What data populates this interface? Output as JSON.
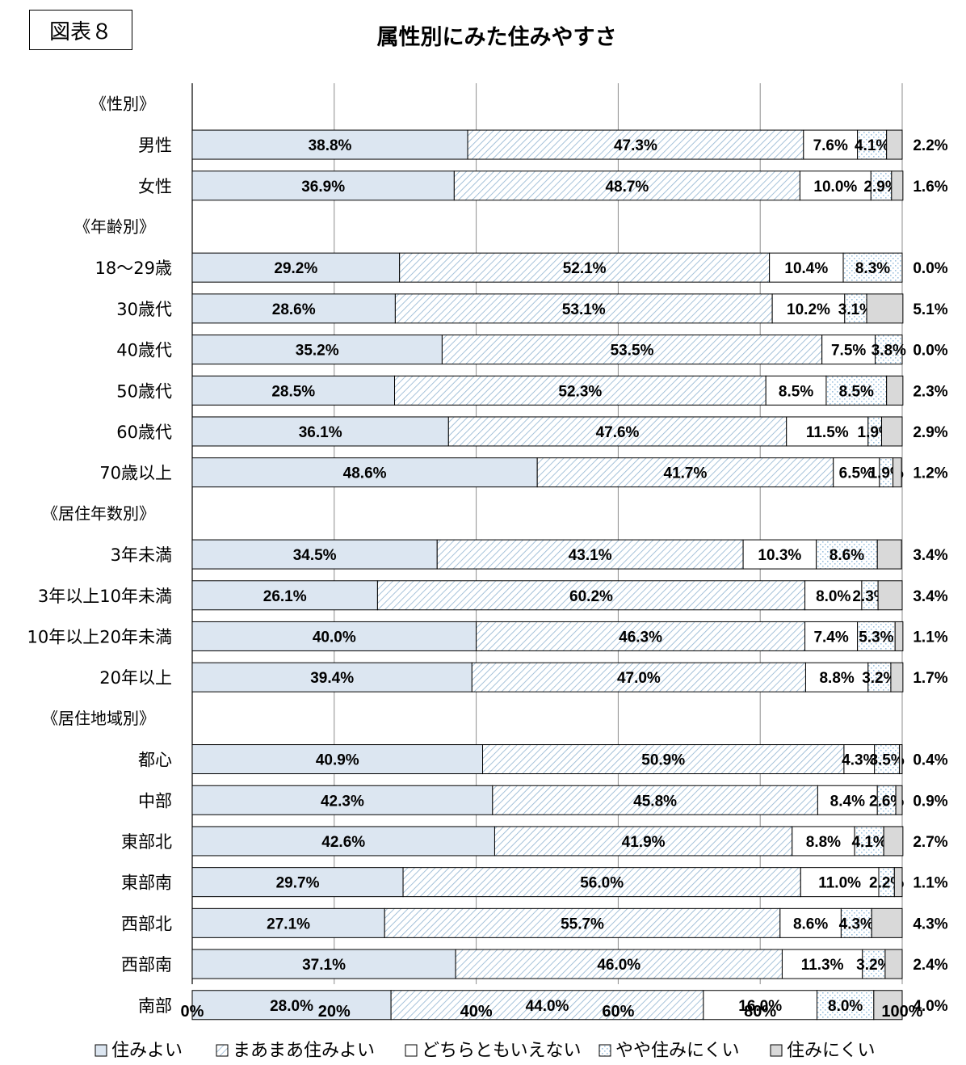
{
  "figure_label": "図表８",
  "colors": {
    "series1": "#dce6f1",
    "series2_hatch": "#8fb3d0",
    "series4_dots": "#9fc3e0",
    "series5": "#d9d9d9",
    "border": "#000000",
    "grid": "#8c8c8c"
  },
  "chart_data": {
    "type": "bar",
    "orientation": "horizontal",
    "stacked": true,
    "title": "属性別にみた住みやすさ",
    "xlim": [
      0,
      100
    ],
    "x_ticks": [
      "0%",
      "20%",
      "40%",
      "60%",
      "80%",
      "100%"
    ],
    "grid": true,
    "legend_position": "bottom",
    "series": [
      {
        "name": "住みよい",
        "pattern": "solid-lightblue"
      },
      {
        "name": "まあまあ住みよい",
        "pattern": "diagonal-hatch"
      },
      {
        "name": "どちらともいえない",
        "pattern": "white"
      },
      {
        "name": "やや住みにくい",
        "pattern": "dotted"
      },
      {
        "name": "住みにくい",
        "pattern": "solid-gray"
      }
    ],
    "groups": [
      {
        "label": "《性別》",
        "rows": [
          {
            "category": "男性",
            "values": [
              38.8,
              47.3,
              7.6,
              4.1,
              2.2
            ],
            "labels": [
              "38.8%",
              "47.3%",
              "7.6%",
              "4.1%",
              "2.2%"
            ]
          },
          {
            "category": "女性",
            "values": [
              36.9,
              48.7,
              10.0,
              2.9,
              1.6
            ],
            "labels": [
              "36.9%",
              "48.7%",
              "10.0%",
              "2.9%",
              "1.6%"
            ]
          }
        ]
      },
      {
        "label": "《年齢別》",
        "rows": [
          {
            "category": "18～29歳",
            "values": [
              29.2,
              52.1,
              10.4,
              8.3,
              0.0
            ],
            "labels": [
              "29.2%",
              "52.1%",
              "10.4%",
              "8.3%",
              "0.0%"
            ]
          },
          {
            "category": "30歳代",
            "values": [
              28.6,
              53.1,
              10.2,
              3.1,
              5.1
            ],
            "labels": [
              "28.6%",
              "53.1%",
              "10.2%",
              "3.1%",
              "5.1%"
            ]
          },
          {
            "category": "40歳代",
            "values": [
              35.2,
              53.5,
              7.5,
              3.8,
              0.0
            ],
            "labels": [
              "35.2%",
              "53.5%",
              "7.5%",
              "3.8%",
              "0.0%"
            ]
          },
          {
            "category": "50歳代",
            "values": [
              28.5,
              52.3,
              8.5,
              8.5,
              2.3
            ],
            "labels": [
              "28.5%",
              "52.3%",
              "8.5%",
              "8.5%",
              "2.3%"
            ]
          },
          {
            "category": "60歳代",
            "values": [
              36.1,
              47.6,
              11.5,
              1.9,
              2.9
            ],
            "labels": [
              "36.1%",
              "47.6%",
              "11.5%",
              "1.9%",
              "2.9%"
            ]
          },
          {
            "category": "70歳以上",
            "values": [
              48.6,
              41.7,
              6.5,
              1.9,
              1.2
            ],
            "labels": [
              "48.6%",
              "41.7%",
              "6.5%",
              "1.9%",
              "1.2%"
            ]
          }
        ]
      },
      {
        "label": "《居住年数別》",
        "rows": [
          {
            "category": "3年未満",
            "values": [
              34.5,
              43.1,
              10.3,
              8.6,
              3.4
            ],
            "labels": [
              "34.5%",
              "43.1%",
              "10.3%",
              "8.6%",
              "3.4%"
            ]
          },
          {
            "category": "3年以上10年未満",
            "values": [
              26.1,
              60.2,
              8.0,
              2.3,
              3.4
            ],
            "labels": [
              "26.1%",
              "60.2%",
              "8.0%",
              "2.3%",
              "3.4%"
            ]
          },
          {
            "category": "10年以上20年未満",
            "values": [
              40.0,
              46.3,
              7.4,
              5.3,
              1.1
            ],
            "labels": [
              "40.0%",
              "46.3%",
              "7.4%",
              "5.3%",
              "1.1%"
            ]
          },
          {
            "category": "20年以上",
            "values": [
              39.4,
              47.0,
              8.8,
              3.2,
              1.7
            ],
            "labels": [
              "39.4%",
              "47.0%",
              "8.8%",
              "3.2%",
              "1.7%"
            ]
          }
        ]
      },
      {
        "label": "《居住地域別》",
        "rows": [
          {
            "category": "都心",
            "values": [
              40.9,
              50.9,
              4.3,
              3.5,
              0.4
            ],
            "labels": [
              "40.9%",
              "50.9%",
              "4.3%",
              "3.5%",
              "0.4%"
            ]
          },
          {
            "category": "中部",
            "values": [
              42.3,
              45.8,
              8.4,
              2.6,
              0.9
            ],
            "labels": [
              "42.3%",
              "45.8%",
              "8.4%",
              "2.6%",
              "0.9%"
            ]
          },
          {
            "category": "東部北",
            "values": [
              42.6,
              41.9,
              8.8,
              4.1,
              2.7
            ],
            "labels": [
              "42.6%",
              "41.9%",
              "8.8%",
              "4.1%",
              "2.7%"
            ]
          },
          {
            "category": "東部南",
            "values": [
              29.7,
              56.0,
              11.0,
              2.2,
              1.1
            ],
            "labels": [
              "29.7%",
              "56.0%",
              "11.0%",
              "2.2%",
              "1.1%"
            ]
          },
          {
            "category": "西部北",
            "values": [
              27.1,
              55.7,
              8.6,
              4.3,
              4.3
            ],
            "labels": [
              "27.1%",
              "55.7%",
              "8.6%",
              "4.3%",
              "4.3%"
            ]
          },
          {
            "category": "西部南",
            "values": [
              37.1,
              46.0,
              11.3,
              3.2,
              2.4
            ],
            "labels": [
              "37.1%",
              "46.0%",
              "11.3%",
              "3.2%",
              "2.4%"
            ]
          },
          {
            "category": "南部",
            "values": [
              28.0,
              44.0,
              16.0,
              8.0,
              4.0
            ],
            "labels": [
              "28.0%",
              "44.0%",
              "16.0%",
              "8.0%",
              "4.0%"
            ]
          }
        ]
      }
    ]
  }
}
